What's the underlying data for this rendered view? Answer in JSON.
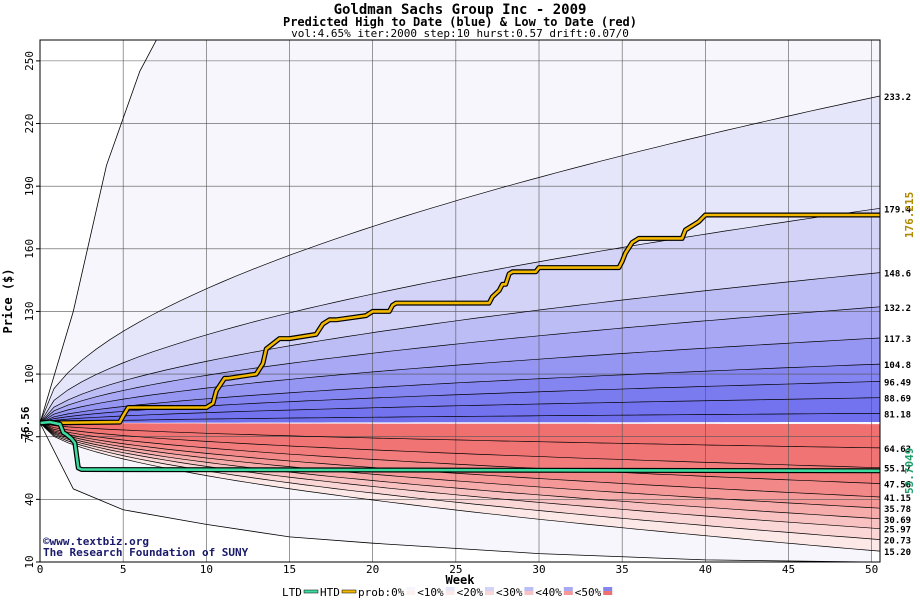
{
  "chart": {
    "title": "Goldman Sachs Group Inc - 2009",
    "subtitle": "Predicted High to Date (blue) &  Low to Date (red)",
    "params": "vol:4.65% iter:2000 step:10 hurst:0.57 drift:0.07/0",
    "credit_line1": "©www.textbiz.org",
    "credit_line2": "The Research Foundation of SUNY"
  },
  "legend": {
    "ltd": "LTD",
    "htd": "HTD",
    "items": [
      "prob:0%",
      "<10%",
      "<20%",
      "<30%",
      "<40%",
      "<50%"
    ]
  },
  "chart_data": {
    "type": "area",
    "xlabel": "Week",
    "ylabel": "Price ($)",
    "xlim": [
      0,
      50.5
    ],
    "ylim": [
      10,
      260
    ],
    "x_ticks": [
      0,
      5,
      10,
      15,
      20,
      25,
      30,
      35,
      40,
      45,
      50
    ],
    "y_ticks": [
      10,
      40,
      70,
      100,
      130,
      160,
      190,
      220,
      250
    ],
    "start_price": 76.56,
    "start_label": "76.56",
    "grid": true,
    "colors": {
      "htd_line": "#f2b800",
      "ltd_line": "#3cdca0",
      "blue_band": "#7878f0",
      "red_band": "#f07070"
    },
    "upper_percentile_levels": [
      233.2,
      179.4,
      148.6,
      132.2,
      117.3,
      104.8,
      96.49,
      88.69,
      81.18
    ],
    "upper_percentile_labels": [
      "233.2",
      "179.4",
      "148.6",
      "132.2",
      "117.3",
      "104.8",
      "96.49",
      "88.69",
      "81.18"
    ],
    "lower_percentile_levels": [
      64.63,
      55.17,
      47.56,
      41.15,
      35.78,
      30.69,
      25.97,
      20.73,
      15.2
    ],
    "lower_percentile_labels": [
      "64.63",
      "55.17",
      "47.56",
      "41.15",
      "35.78",
      "30.69",
      "25.97",
      "20.73",
      "15.20"
    ],
    "max_envelope": {
      "x": [
        0,
        2,
        4,
        6,
        7,
        10,
        12.6
      ],
      "y": [
        76.56,
        130,
        200,
        245,
        260,
        275,
        280
      ]
    },
    "min_envelope": {
      "x": [
        0,
        2,
        5,
        10,
        15,
        20,
        30,
        40,
        50
      ],
      "y": [
        76.56,
        45,
        35,
        28,
        22,
        19,
        14,
        11,
        10
      ]
    },
    "htd_series": {
      "name": "HTD",
      "value_label": "176.215",
      "x": [
        0,
        4.8,
        5,
        5.3,
        10,
        10.4,
        10.6,
        11.1,
        11.3,
        13,
        13.4,
        13.6,
        14.4,
        15,
        16.6,
        17,
        17.4,
        17.8,
        19.6,
        19.8,
        20,
        21,
        21.2,
        21.4,
        27,
        27.2,
        27.6,
        27.8,
        28,
        28.2,
        28.4,
        29.8,
        30,
        34.8,
        35,
        35.2,
        35.6,
        36,
        38.6,
        38.8,
        39.6,
        40,
        50.5
      ],
      "y": [
        76.56,
        77,
        80,
        84,
        84,
        86,
        92,
        98,
        98,
        100,
        105,
        112,
        117,
        117,
        119,
        124,
        126,
        126,
        128,
        129,
        130,
        130,
        133,
        134,
        134,
        137,
        140,
        143,
        143,
        148,
        149,
        149,
        151,
        151,
        154,
        158,
        163,
        165,
        165,
        169,
        173,
        176.2,
        176.2
      ]
    },
    "ltd_series": {
      "name": "LTD",
      "value_label": "53.7049",
      "x": [
        0,
        0.6,
        1.2,
        1.4,
        1.6,
        1.9,
        2.1,
        2.3,
        2.5,
        50.5
      ],
      "y": [
        76.56,
        77,
        76,
        72,
        71,
        69,
        67,
        55,
        54.3,
        53.7
      ]
    }
  }
}
